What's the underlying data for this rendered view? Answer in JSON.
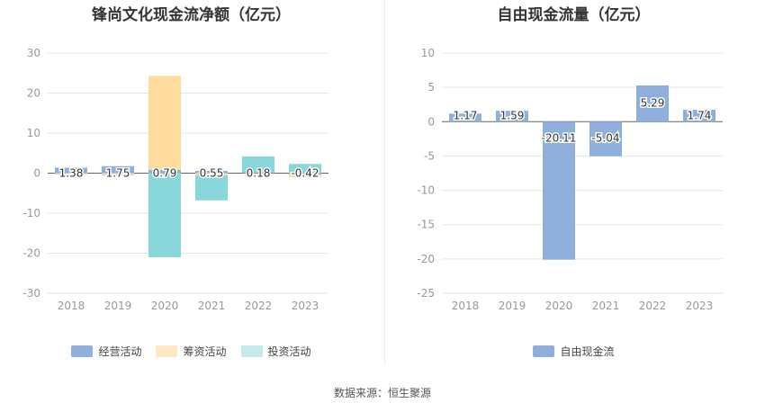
{
  "chart_data": [
    {
      "type": "bar",
      "title": "锋尚文化现金流净额（亿元）",
      "categories": [
        "2018",
        "2019",
        "2020",
        "2021",
        "2022",
        "2023"
      ],
      "ylim": [
        -30,
        30
      ],
      "yticks": [
        30,
        20,
        10,
        0,
        -10,
        -20,
        -30
      ],
      "grid": true,
      "legend_position": "bottom",
      "series": [
        {
          "name": "经营活动",
          "color": "#8fb0dc",
          "values": [
            1.38,
            1.75,
            0.79,
            0.55,
            0.18,
            -0.42
          ]
        },
        {
          "name": "筹资活动",
          "color": "#ffdb9e",
          "values": [
            -0.2,
            -0.3,
            23.5,
            -0.5,
            0.0,
            -0.6
          ]
        },
        {
          "name": "投资活动",
          "color": "#88d8db",
          "values": [
            -0.1,
            -0.2,
            -21.0,
            -6.3,
            4.0,
            2.3
          ]
        }
      ],
      "data_labels": [
        "1.38",
        "1.75",
        "0.79",
        "0.55",
        "0.18",
        "-0.42"
      ]
    },
    {
      "type": "bar",
      "title": "自由现金流量（亿元）",
      "categories": [
        "2018",
        "2019",
        "2020",
        "2021",
        "2022",
        "2023"
      ],
      "ylim": [
        -25,
        10
      ],
      "yticks": [
        10,
        5,
        0,
        -5,
        -10,
        -15,
        -20,
        -25
      ],
      "grid": true,
      "legend_position": "bottom",
      "series": [
        {
          "name": "自由现金流",
          "color": "#8fb0dc",
          "values": [
            1.17,
            1.59,
            -20.11,
            -5.04,
            5.29,
            1.74
          ]
        }
      ],
      "data_labels": [
        "1.17",
        "1.59",
        "-20.11",
        "-5.04",
        "5.29",
        "1.74"
      ]
    }
  ],
  "source": "数据来源：恒生聚源"
}
